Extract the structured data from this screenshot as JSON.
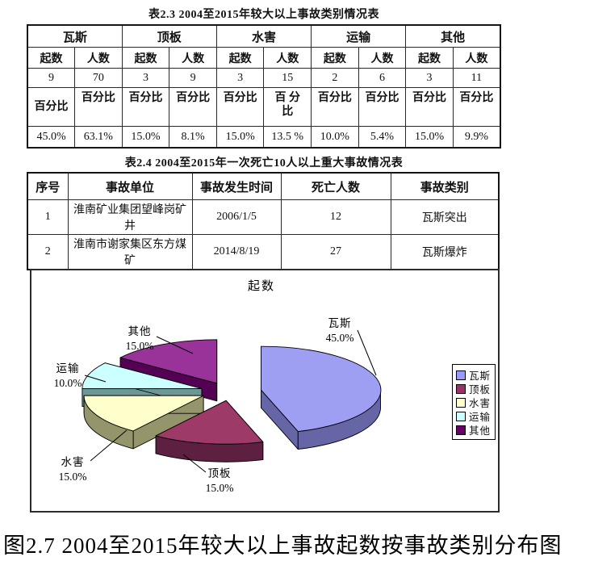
{
  "page": {
    "caption": "图2.7 2004至2015年较大以上事故起数按事故类别分布图"
  },
  "table1": {
    "title": "表2.3 2004至2015年较大以上事故类别情况表",
    "groups": [
      "瓦斯",
      "顶板",
      "水害",
      "运输",
      "其他"
    ],
    "sub_headers": [
      "起数",
      "人数",
      "起数",
      "人数",
      "起数",
      "人数",
      "起数",
      "人数",
      "起数",
      "人数"
    ],
    "counts": [
      "9",
      "70",
      "3",
      "9",
      "3",
      "15",
      "2",
      "6",
      "3",
      "11"
    ],
    "pct_headers": [
      "百分比",
      "百分比",
      "百分比",
      "百分比",
      "百分比",
      "百 分\n比",
      "百分比",
      "百分比",
      "百分比",
      "百分比"
    ],
    "pcts": [
      "45.0%",
      "63.1%",
      "15.0%",
      "8.1%",
      "15.0%",
      "13.5 %",
      "10.0%",
      "5.4%",
      "15.0%",
      "9.9%"
    ]
  },
  "table2": {
    "title": "表2.4 2004至2015年一次死亡10人以上重大事故情况表",
    "headers": [
      "序号",
      "事故单位",
      "事故发生时间",
      "死亡人数",
      "事故类别"
    ],
    "rows": [
      [
        "1",
        "淮南矿业集团望峰岗矿井",
        "2006/1/5",
        "12",
        "瓦斯突出"
      ],
      [
        "2",
        "淮南市谢家集区东方煤矿",
        "2014/8/19",
        "27",
        "瓦斯爆炸"
      ]
    ]
  },
  "chart_data": {
    "type": "pie",
    "style": "3d-exploded",
    "title": "起数",
    "categories": [
      "瓦斯",
      "顶板",
      "水害",
      "运输",
      "其他"
    ],
    "values": [
      9,
      3,
      3,
      2,
      3
    ],
    "percent_labels": [
      "45.0%",
      "15.0%",
      "15.0%",
      "10.0%",
      "15.0%"
    ],
    "colors": [
      "#9999FF",
      "#993366",
      "#FFFFCC",
      "#CCFFFF",
      "#660066"
    ],
    "top_colors": [
      "#9E9EF2",
      "#9D3A68",
      "#FFFFCC",
      "#CCFFFF",
      "#993399"
    ],
    "side_colors": [
      "#6666A6",
      "#5E2040",
      "#95956B",
      "#6D9795",
      "#540054"
    ],
    "legend_position": "right"
  }
}
